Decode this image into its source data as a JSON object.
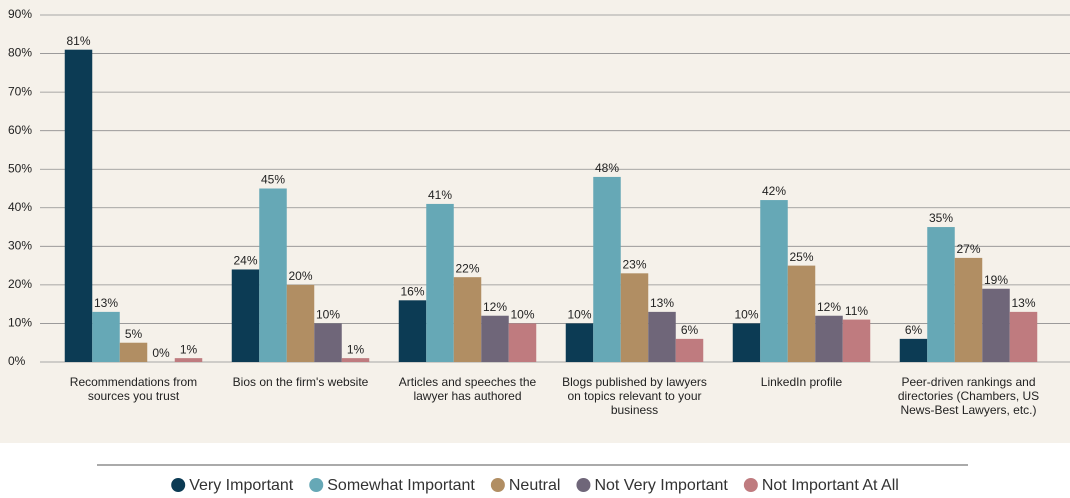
{
  "chart_data": {
    "type": "bar",
    "categories": [
      "Recommendations from sources you trust",
      "Bios on the firm's website",
      "Articles and speeches the lawyer has authored",
      "Blogs published by lawyers on topics relevant to your business",
      "LinkedIn profile",
      "Peer-driven rankings and directories (Chambers, US News-Best Lawyers, etc.)"
    ],
    "series": [
      {
        "name": "Very Important",
        "color": "#0c3b54",
        "values": [
          81,
          24,
          16,
          10,
          10,
          6
        ],
        "value_labels": [
          "81%",
          "24%",
          "16%",
          "10%",
          "10%",
          "6%"
        ]
      },
      {
        "name": "Somewhat Important",
        "color": "#66a8b6",
        "values": [
          13,
          45,
          41,
          48,
          42,
          35
        ],
        "value_labels": [
          "13%",
          "45%",
          "41%",
          "48%",
          "42%",
          "35%"
        ]
      },
      {
        "name": "Neutral",
        "color": "#b18e63",
        "values": [
          5,
          20,
          22,
          23,
          25,
          27
        ],
        "value_labels": [
          "5%",
          "20%",
          "22%",
          "23%",
          "25%",
          "27%"
        ]
      },
      {
        "name": "Not Very Important",
        "color": "#6f6679",
        "values": [
          0,
          10,
          12,
          13,
          12,
          19
        ],
        "value_labels": [
          "0%",
          "10%",
          "12%",
          "13%",
          "12%",
          "19%"
        ]
      },
      {
        "name": "Not Important At All",
        "color": "#bf7b7f",
        "values": [
          1,
          1,
          10,
          6,
          11,
          13
        ],
        "value_labels": [
          "1%",
          "1%",
          "10%",
          "6%",
          "11%",
          "13%"
        ]
      }
    ],
    "ylim": [
      0,
      90
    ],
    "yticks": [
      {
        "value": 0,
        "label": "0%"
      },
      {
        "value": 10,
        "label": "10%"
      },
      {
        "value": 20,
        "label": "20%"
      },
      {
        "value": 30,
        "label": "30%"
      },
      {
        "value": 40,
        "label": "40%"
      },
      {
        "value": 50,
        "label": "50%"
      },
      {
        "value": 60,
        "label": "60%"
      },
      {
        "value": 70,
        "label": "70%"
      },
      {
        "value": 80,
        "label": "80%"
      },
      {
        "value": 90,
        "label": "90%"
      }
    ],
    "grid": true,
    "legend": "bottom"
  }
}
